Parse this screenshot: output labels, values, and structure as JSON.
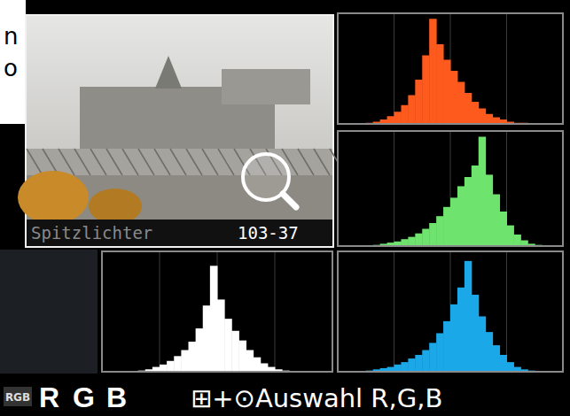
{
  "screen": {
    "edge_letters": [
      "n",
      "o"
    ]
  },
  "photo": {
    "caption": "Spitzlichter",
    "number": "103-37"
  },
  "footer": {
    "mode": "RGB",
    "channels": [
      "R",
      "G",
      "B"
    ],
    "hint": "⊞+⊙Auswahl R,G,B"
  },
  "chart_data": [
    {
      "type": "histogram",
      "color": "#ff5a1e",
      "bins": [
        0,
        8,
        16,
        24,
        32,
        40,
        48,
        56,
        64,
        72,
        80,
        88,
        96,
        104,
        112,
        120,
        128,
        136,
        144,
        152,
        160,
        168,
        176,
        184,
        192,
        200,
        208,
        216,
        224,
        232,
        240,
        248,
        256
      ],
      "values": [
        0,
        0,
        0,
        0,
        1,
        2,
        4,
        7,
        11,
        17,
        26,
        40,
        62,
        95,
        72,
        58,
        48,
        38,
        28,
        20,
        14,
        9,
        6,
        4,
        2,
        1,
        1,
        0,
        0,
        0,
        0,
        0
      ],
      "xlim": [
        0,
        256
      ],
      "ylim": [
        0,
        100
      ],
      "xticks": [
        64,
        128,
        192
      ],
      "grid": true,
      "tick_labels": false
    },
    {
      "type": "histogram",
      "color": "#6ee36e",
      "bins": [
        0,
        8,
        16,
        24,
        32,
        40,
        48,
        56,
        64,
        72,
        80,
        88,
        96,
        104,
        112,
        120,
        128,
        136,
        144,
        152,
        160,
        168,
        176,
        184,
        192,
        200,
        208,
        216,
        224,
        232,
        240,
        248,
        256
      ],
      "values": [
        0,
        0,
        0,
        0,
        0,
        1,
        2,
        3,
        4,
        6,
        8,
        11,
        15,
        20,
        26,
        34,
        42,
        52,
        60,
        70,
        95,
        62,
        45,
        30,
        18,
        10,
        5,
        2,
        1,
        0,
        0,
        0
      ],
      "xlim": [
        0,
        256
      ],
      "ylim": [
        0,
        100
      ],
      "xticks": [
        64,
        128,
        192
      ],
      "grid": true,
      "tick_labels": false
    },
    {
      "type": "histogram",
      "color": "#1aa8e8",
      "bins": [
        0,
        8,
        16,
        24,
        32,
        40,
        48,
        56,
        64,
        72,
        80,
        88,
        96,
        104,
        112,
        120,
        128,
        136,
        144,
        152,
        160,
        168,
        176,
        184,
        192,
        200,
        208,
        216,
        224,
        232,
        240,
        248,
        256
      ],
      "values": [
        0,
        0,
        0,
        0,
        1,
        2,
        3,
        4,
        6,
        8,
        11,
        14,
        18,
        24,
        32,
        42,
        56,
        70,
        92,
        64,
        46,
        33,
        22,
        14,
        8,
        4,
        2,
        1,
        0,
        0,
        0,
        0
      ],
      "xlim": [
        0,
        256
      ],
      "ylim": [
        0,
        100
      ],
      "xticks": [
        64,
        128,
        192
      ],
      "grid": true,
      "tick_labels": false
    },
    {
      "type": "histogram",
      "color": "#ffffff",
      "bins": [
        0,
        8,
        16,
        24,
        32,
        40,
        48,
        56,
        64,
        72,
        80,
        88,
        96,
        104,
        112,
        120,
        128,
        136,
        144,
        152,
        160,
        168,
        176,
        184,
        192,
        200,
        208,
        216,
        224,
        232,
        240,
        248,
        256
      ],
      "values": [
        0,
        0,
        0,
        0,
        0,
        1,
        2,
        4,
        6,
        9,
        13,
        18,
        25,
        36,
        55,
        88,
        60,
        44,
        34,
        26,
        18,
        12,
        7,
        4,
        2,
        1,
        0,
        0,
        0,
        0,
        0,
        0
      ],
      "xlim": [
        0,
        256
      ],
      "ylim": [
        0,
        100
      ],
      "xticks": [
        64,
        128,
        192
      ],
      "grid": true,
      "tick_labels": false
    }
  ]
}
